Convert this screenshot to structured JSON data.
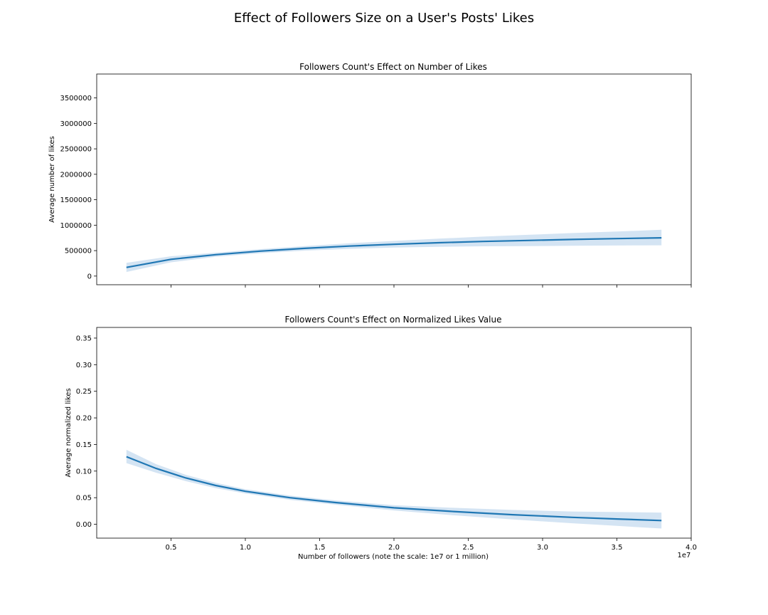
{
  "figure": {
    "suptitle": "Effect of Followers Size on a User's Posts' Likes"
  },
  "chart_data": [
    {
      "type": "scatter",
      "title": "Followers Count's Effect on Number of Likes",
      "xlabel": "",
      "ylabel": "Average number of likes",
      "xlim": [
        0,
        40000000
      ],
      "ylim": [
        -170000,
        3970000
      ],
      "x_ticks": [
        5000000,
        10000000,
        15000000,
        20000000,
        25000000,
        30000000,
        35000000,
        40000000
      ],
      "x_tick_labels": [
        "",
        "",
        "",
        "",
        "",
        "",
        "",
        ""
      ],
      "y_ticks": [
        0,
        500000,
        1000000,
        1500000,
        2000000,
        2500000,
        3000000,
        3500000
      ],
      "y_tick_labels": [
        "0",
        "500000",
        "1000000",
        "1500000",
        "2000000",
        "2500000",
        "3000000",
        "3500000"
      ],
      "points_x": [],
      "points_y": [],
      "regression": {
        "x": [
          2000000,
          5000000,
          8000000,
          11000000,
          14000000,
          17000000,
          20000000,
          23000000,
          26000000,
          29000000,
          32000000,
          35000000,
          38000000
        ],
        "y": [
          170000,
          330000,
          420000,
          490000,
          545000,
          590000,
          625000,
          655000,
          680000,
          700000,
          720000,
          737000,
          752000
        ]
      },
      "ci_lower": [
        80000,
        270000,
        380000,
        450000,
        500000,
        535000,
        560000,
        575000,
        585000,
        590000,
        595000,
        600000,
        605000
      ],
      "ci_upper": [
        260000,
        390000,
        460000,
        530000,
        590000,
        645000,
        690000,
        735000,
        775000,
        810000,
        845000,
        875000,
        910000
      ],
      "marker_color": "#1f77b4",
      "band_color": "#c6dbef",
      "grid": false
    },
    {
      "type": "scatter",
      "title": "Followers Count's Effect on Normalized Likes Value",
      "xlabel": "Number of followers (note the scale: 1e7 or 1 million)",
      "ylabel": "Average normalized likes",
      "x_offset_label": "1e7",
      "xlim": [
        0,
        40000000
      ],
      "ylim": [
        -0.026,
        0.37
      ],
      "x_ticks": [
        5000000,
        10000000,
        15000000,
        20000000,
        25000000,
        30000000,
        35000000,
        40000000
      ],
      "x_tick_labels": [
        "0.5",
        "1.0",
        "1.5",
        "2.0",
        "2.5",
        "3.0",
        "3.5",
        "4.0"
      ],
      "y_ticks": [
        0,
        0.05,
        0.1,
        0.15,
        0.2,
        0.25,
        0.3,
        0.35
      ],
      "y_tick_labels": [
        "0.00",
        "0.05",
        "0.10",
        "0.15",
        "0.20",
        "0.25",
        "0.30",
        "0.35"
      ],
      "points_x": [],
      "points_y": [],
      "regression": {
        "x": [
          2000000,
          4000000,
          6000000,
          8000000,
          10000000,
          13000000,
          16000000,
          20000000,
          24000000,
          28000000,
          32000000,
          35000000,
          38000000
        ],
        "y": [
          0.127,
          0.105,
          0.087,
          0.073,
          0.062,
          0.05,
          0.041,
          0.031,
          0.024,
          0.018,
          0.013,
          0.01,
          0.007
        ],
        "ci_lower": [
          0.115,
          0.097,
          0.081,
          0.068,
          0.058,
          0.046,
          0.037,
          0.026,
          0.017,
          0.009,
          0.002,
          -0.003,
          -0.008
        ],
        "ci_upper": [
          0.14,
          0.113,
          0.093,
          0.078,
          0.066,
          0.054,
          0.045,
          0.036,
          0.031,
          0.027,
          0.024,
          0.023,
          0.022
        ]
      },
      "marker_color": "#1f77b4",
      "band_color": "#c6dbef",
      "grid": false
    }
  ]
}
